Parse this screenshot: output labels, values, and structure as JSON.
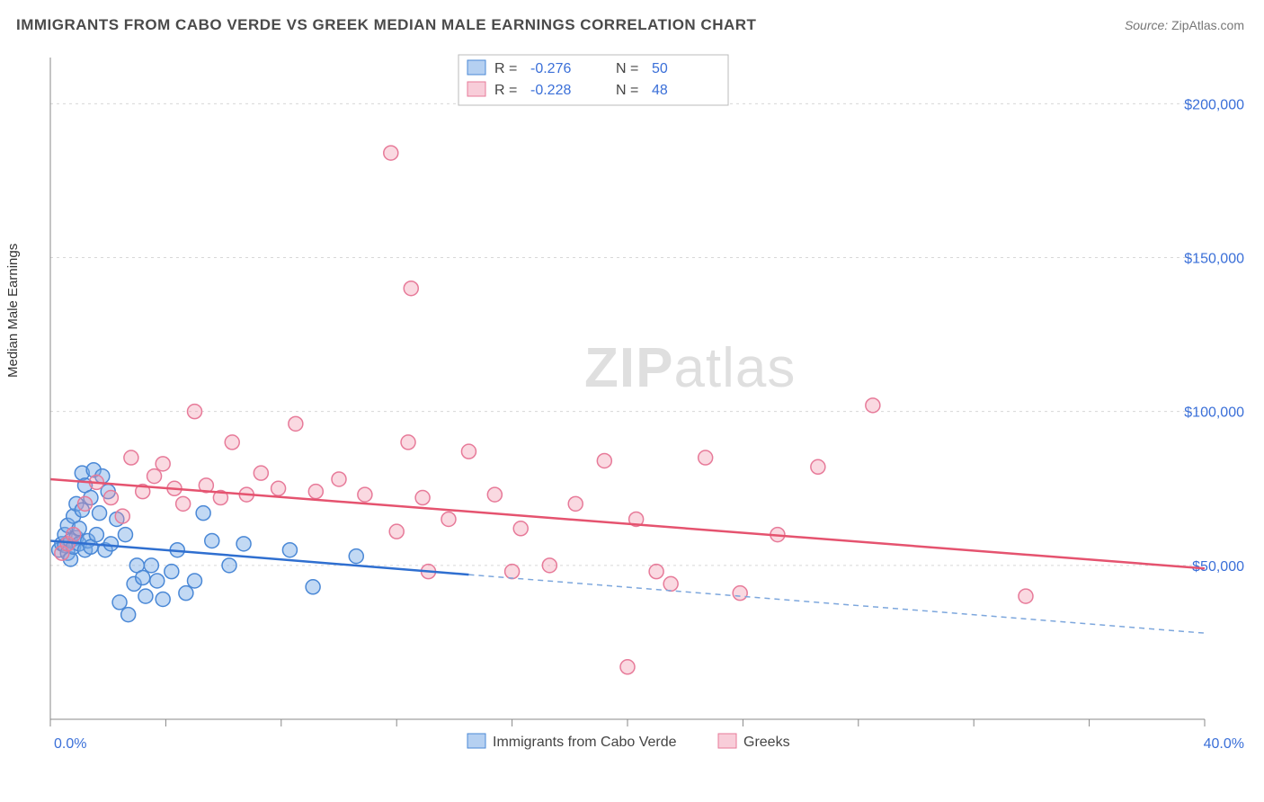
{
  "title": "IMMIGRANTS FROM CABO VERDE VS GREEK MEDIAN MALE EARNINGS CORRELATION CHART",
  "source_label": "Source:",
  "source_value": "ZipAtlas.com",
  "ylabel": "Median Male Earnings",
  "watermark_a": "ZIP",
  "watermark_b": "atlas",
  "chart": {
    "type": "scatter",
    "xlim": [
      0,
      40
    ],
    "ylim": [
      0,
      215000
    ],
    "xtick_labels": [
      "0.0%",
      "40.0%"
    ],
    "xtick_positions": [
      0,
      40
    ],
    "xtick_minor": [
      4,
      8,
      12,
      16,
      20,
      24,
      28,
      32,
      36
    ],
    "ytick_values": [
      50000,
      100000,
      150000,
      200000
    ],
    "ytick_labels": [
      "$50,000",
      "$100,000",
      "$150,000",
      "$200,000"
    ],
    "background_color": "#ffffff",
    "grid_color": "#d7d7d7",
    "axis_color": "#888888",
    "label_color": "#3a6fd8",
    "marker_radius": 8,
    "series": [
      {
        "key": "cabo_verde",
        "label": "Immigrants from Cabo Verde",
        "color_fill": "rgba(120,170,230,0.45)",
        "color_stroke": "#4a88d6",
        "trend_color": "#2f6fd0",
        "r_value": "-0.276",
        "n_value": "50",
        "trend": {
          "x1": 0,
          "y1": 58000,
          "x2": 14.5,
          "y2": 47000,
          "dash_to_x": 40,
          "dash_to_y": 28000
        },
        "points": [
          [
            0.3,
            55000
          ],
          [
            0.4,
            57000
          ],
          [
            0.5,
            56500
          ],
          [
            0.5,
            60000
          ],
          [
            0.6,
            54000
          ],
          [
            0.6,
            63000
          ],
          [
            0.7,
            58000
          ],
          [
            0.7,
            52000
          ],
          [
            0.8,
            66000
          ],
          [
            0.8,
            56000
          ],
          [
            0.9,
            59000
          ],
          [
            0.9,
            70000
          ],
          [
            1.0,
            62000
          ],
          [
            1.0,
            57000
          ],
          [
            1.1,
            80000
          ],
          [
            1.1,
            68000
          ],
          [
            1.2,
            55000
          ],
          [
            1.2,
            76000
          ],
          [
            1.3,
            58000
          ],
          [
            1.4,
            72000
          ],
          [
            1.4,
            56000
          ],
          [
            1.5,
            81000
          ],
          [
            1.6,
            60000
          ],
          [
            1.7,
            67000
          ],
          [
            1.8,
            79000
          ],
          [
            1.9,
            55000
          ],
          [
            2.0,
            74000
          ],
          [
            2.1,
            57000
          ],
          [
            2.3,
            65000
          ],
          [
            2.4,
            38000
          ],
          [
            2.6,
            60000
          ],
          [
            2.7,
            34000
          ],
          [
            2.9,
            44000
          ],
          [
            3.0,
            50000
          ],
          [
            3.2,
            46000
          ],
          [
            3.3,
            40000
          ],
          [
            3.5,
            50000
          ],
          [
            3.7,
            45000
          ],
          [
            3.9,
            39000
          ],
          [
            4.2,
            48000
          ],
          [
            4.4,
            55000
          ],
          [
            4.7,
            41000
          ],
          [
            5.0,
            45000
          ],
          [
            5.3,
            67000
          ],
          [
            5.6,
            58000
          ],
          [
            6.2,
            50000
          ],
          [
            6.7,
            57000
          ],
          [
            8.3,
            55000
          ],
          [
            9.1,
            43000
          ],
          [
            10.6,
            53000
          ]
        ]
      },
      {
        "key": "greeks",
        "label": "Greeks",
        "color_fill": "rgba(240,145,170,0.35)",
        "color_stroke": "#e77a99",
        "trend_color": "#e5536f",
        "r_value": "-0.228",
        "n_value": "48",
        "trend": {
          "x1": 0,
          "y1": 78000,
          "x2": 40,
          "y2": 49000
        },
        "points": [
          [
            0.4,
            54000
          ],
          [
            0.6,
            57000
          ],
          [
            0.8,
            60000
          ],
          [
            1.2,
            70000
          ],
          [
            1.6,
            77000
          ],
          [
            2.1,
            72000
          ],
          [
            2.5,
            66000
          ],
          [
            2.8,
            85000
          ],
          [
            3.2,
            74000
          ],
          [
            3.6,
            79000
          ],
          [
            3.9,
            83000
          ],
          [
            4.3,
            75000
          ],
          [
            4.6,
            70000
          ],
          [
            5.0,
            100000
          ],
          [
            5.4,
            76000
          ],
          [
            5.9,
            72000
          ],
          [
            6.3,
            90000
          ],
          [
            6.8,
            73000
          ],
          [
            7.3,
            80000
          ],
          [
            7.9,
            75000
          ],
          [
            8.5,
            96000
          ],
          [
            9.2,
            74000
          ],
          [
            10.0,
            78000
          ],
          [
            10.9,
            73000
          ],
          [
            11.8,
            184000
          ],
          [
            12.0,
            61000
          ],
          [
            12.5,
            140000
          ],
          [
            12.4,
            90000
          ],
          [
            12.9,
            72000
          ],
          [
            13.1,
            48000
          ],
          [
            13.8,
            65000
          ],
          [
            14.5,
            87000
          ],
          [
            15.4,
            73000
          ],
          [
            16.0,
            48000
          ],
          [
            16.3,
            62000
          ],
          [
            17.3,
            50000
          ],
          [
            18.2,
            70000
          ],
          [
            19.2,
            84000
          ],
          [
            20.3,
            65000
          ],
          [
            21.0,
            48000
          ],
          [
            21.5,
            44000
          ],
          [
            22.7,
            85000
          ],
          [
            23.9,
            41000
          ],
          [
            25.2,
            60000
          ],
          [
            26.6,
            82000
          ],
          [
            28.5,
            102000
          ],
          [
            33.8,
            40000
          ],
          [
            20.0,
            17000
          ]
        ]
      }
    ]
  },
  "legend_top": {
    "r_label": "R =",
    "n_label": "N ="
  },
  "legend_bottom": {}
}
